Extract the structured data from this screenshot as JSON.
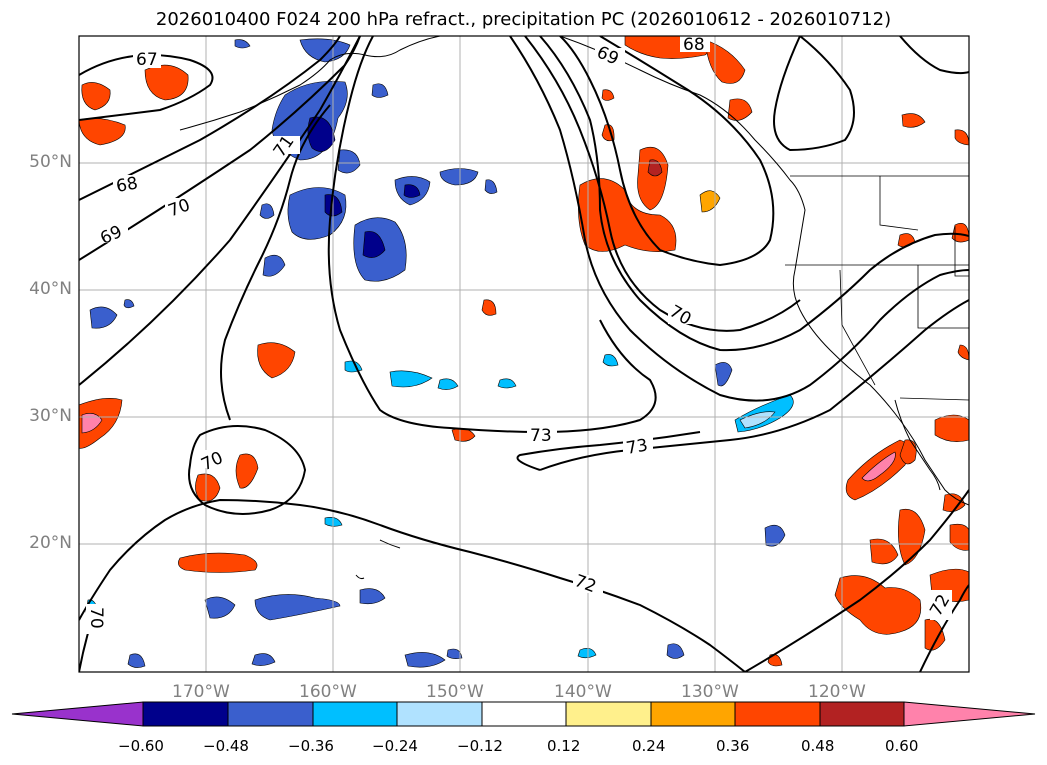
{
  "title": "2026010400 F024 200 hPa refract., precipitation PC (2026010612 - 2026010712)",
  "map": {
    "projection": "platecarree",
    "lon_range": [
      -180,
      -110
    ],
    "lat_range": [
      10,
      60
    ],
    "lat_ticks": [
      {
        "value": 50,
        "label": "50°N"
      },
      {
        "value": 40,
        "label": "40°N"
      },
      {
        "value": 30,
        "label": "30°N"
      },
      {
        "value": 20,
        "label": "20°N"
      }
    ],
    "lon_ticks": [
      {
        "value": -170,
        "label": "170°W"
      },
      {
        "value": -160,
        "label": "160°W"
      },
      {
        "value": -150,
        "label": "150°W"
      },
      {
        "value": -140,
        "label": "140°W"
      },
      {
        "value": -130,
        "label": "130°W"
      },
      {
        "value": -120,
        "label": "120°W"
      }
    ],
    "gridlines": true,
    "contour_labels": [
      "67",
      "68",
      "69",
      "70",
      "71",
      "72",
      "73"
    ]
  },
  "colorbar": {
    "extend": "both",
    "colors": [
      "#9932cc",
      "#00008b",
      "#3a5fcd",
      "#00bfff",
      "#b0e2ff",
      "#ffffff",
      "#fff08c",
      "#ffa500",
      "#ff4500",
      "#b22222",
      "#ff82ab"
    ],
    "tick_labels": [
      "−0.60",
      "−0.48",
      "−0.36",
      "−0.24",
      "−0.12",
      "0.12",
      "0.24",
      "0.36",
      "0.48",
      "0.60"
    ]
  }
}
